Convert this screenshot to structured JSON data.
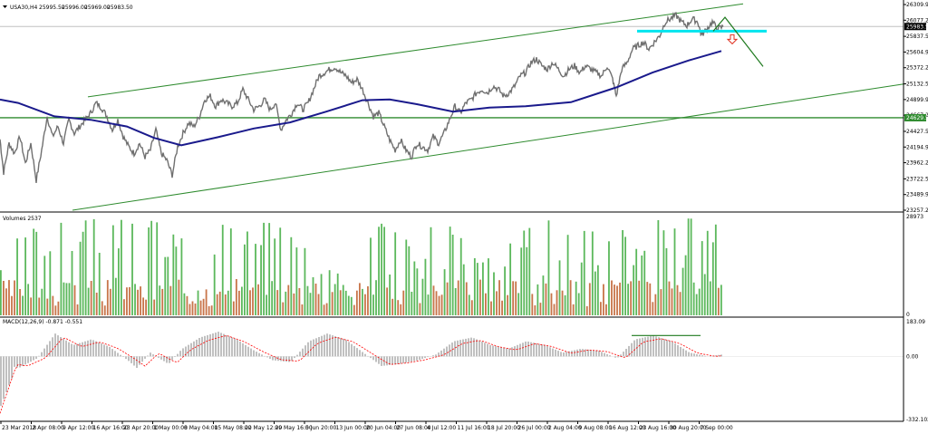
{
  "chart_data": [
    {
      "type": "line",
      "header": {
        "symbol": "USA30,H4",
        "open": "25995.50",
        "high": "25996.00",
        "low": "25969.00",
        "close": "25983.50"
      },
      "yticks": [
        "26309.90",
        "26077.25",
        "25837.55",
        "25604.90",
        "25372.25",
        "25132.55",
        "24899.90",
        "24667.25",
        "24427.55",
        "24194.90",
        "23962.25",
        "23722.55",
        "23489.90",
        "23257.25"
      ],
      "ylim": [
        23257.25,
        26309.9
      ],
      "price_label": "25983.50",
      "hline_label": "24629.51",
      "hline_value": 24629.51,
      "price_path": [
        {
          "x": 0,
          "y": 24310
        },
        {
          "x": 4,
          "y": 23820
        },
        {
          "x": 10,
          "y": 24250
        },
        {
          "x": 16,
          "y": 24100
        },
        {
          "x": 22,
          "y": 24350
        },
        {
          "x": 28,
          "y": 23950
        },
        {
          "x": 34,
          "y": 24250
        },
        {
          "x": 40,
          "y": 23700
        },
        {
          "x": 46,
          "y": 24150
        },
        {
          "x": 52,
          "y": 24650
        },
        {
          "x": 58,
          "y": 24350
        },
        {
          "x": 64,
          "y": 24500
        },
        {
          "x": 70,
          "y": 24250
        },
        {
          "x": 76,
          "y": 24600
        },
        {
          "x": 82,
          "y": 24400
        },
        {
          "x": 88,
          "y": 24500
        },
        {
          "x": 94,
          "y": 24600
        },
        {
          "x": 100,
          "y": 24700
        },
        {
          "x": 106,
          "y": 24850
        },
        {
          "x": 112,
          "y": 24780
        },
        {
          "x": 118,
          "y": 24650
        },
        {
          "x": 124,
          "y": 24450
        },
        {
          "x": 130,
          "y": 24600
        },
        {
          "x": 136,
          "y": 24350
        },
        {
          "x": 142,
          "y": 24200
        },
        {
          "x": 148,
          "y": 24100
        },
        {
          "x": 154,
          "y": 24250
        },
        {
          "x": 160,
          "y": 24050
        },
        {
          "x": 166,
          "y": 24150
        },
        {
          "x": 172,
          "y": 24450
        },
        {
          "x": 178,
          "y": 24100
        },
        {
          "x": 184,
          "y": 24000
        },
        {
          "x": 190,
          "y": 23780
        },
        {
          "x": 196,
          "y": 24200
        },
        {
          "x": 202,
          "y": 24400
        },
        {
          "x": 208,
          "y": 24550
        },
        {
          "x": 214,
          "y": 24500
        },
        {
          "x": 220,
          "y": 24650
        },
        {
          "x": 226,
          "y": 24900
        },
        {
          "x": 232,
          "y": 24950
        },
        {
          "x": 238,
          "y": 24800
        },
        {
          "x": 244,
          "y": 24900
        },
        {
          "x": 250,
          "y": 24850
        },
        {
          "x": 256,
          "y": 24800
        },
        {
          "x": 262,
          "y": 24850
        },
        {
          "x": 268,
          "y": 25050
        },
        {
          "x": 274,
          "y": 24900
        },
        {
          "x": 280,
          "y": 24750
        },
        {
          "x": 286,
          "y": 24800
        },
        {
          "x": 292,
          "y": 24900
        },
        {
          "x": 298,
          "y": 24750
        },
        {
          "x": 304,
          "y": 24850
        },
        {
          "x": 310,
          "y": 24450
        },
        {
          "x": 316,
          "y": 24600
        },
        {
          "x": 322,
          "y": 24700
        },
        {
          "x": 328,
          "y": 24850
        },
        {
          "x": 334,
          "y": 24750
        },
        {
          "x": 340,
          "y": 24850
        },
        {
          "x": 346,
          "y": 25050
        },
        {
          "x": 352,
          "y": 25250
        },
        {
          "x": 358,
          "y": 25300
        },
        {
          "x": 364,
          "y": 25350
        },
        {
          "x": 370,
          "y": 25380
        },
        {
          "x": 376,
          "y": 25300
        },
        {
          "x": 382,
          "y": 25250
        },
        {
          "x": 388,
          "y": 25150
        },
        {
          "x": 394,
          "y": 25200
        },
        {
          "x": 400,
          "y": 25050
        },
        {
          "x": 406,
          "y": 24850
        },
        {
          "x": 412,
          "y": 24650
        },
        {
          "x": 418,
          "y": 24700
        },
        {
          "x": 424,
          "y": 24500
        },
        {
          "x": 430,
          "y": 24300
        },
        {
          "x": 436,
          "y": 24150
        },
        {
          "x": 442,
          "y": 24300
        },
        {
          "x": 448,
          "y": 24150
        },
        {
          "x": 454,
          "y": 24050
        },
        {
          "x": 460,
          "y": 24250
        },
        {
          "x": 466,
          "y": 24200
        },
        {
          "x": 472,
          "y": 24150
        },
        {
          "x": 478,
          "y": 24350
        },
        {
          "x": 484,
          "y": 24250
        },
        {
          "x": 490,
          "y": 24400
        },
        {
          "x": 496,
          "y": 24600
        },
        {
          "x": 502,
          "y": 24800
        },
        {
          "x": 508,
          "y": 24700
        },
        {
          "x": 514,
          "y": 24850
        },
        {
          "x": 520,
          "y": 24900
        },
        {
          "x": 526,
          "y": 25000
        },
        {
          "x": 532,
          "y": 25050
        },
        {
          "x": 538,
          "y": 25000
        },
        {
          "x": 544,
          "y": 25100
        },
        {
          "x": 550,
          "y": 25050
        },
        {
          "x": 556,
          "y": 24950
        },
        {
          "x": 562,
          "y": 25000
        },
        {
          "x": 568,
          "y": 25100
        },
        {
          "x": 574,
          "y": 25250
        },
        {
          "x": 580,
          "y": 25300
        },
        {
          "x": 586,
          "y": 25450
        },
        {
          "x": 592,
          "y": 25500
        },
        {
          "x": 598,
          "y": 25400
        },
        {
          "x": 604,
          "y": 25350
        },
        {
          "x": 610,
          "y": 25450
        },
        {
          "x": 616,
          "y": 25350
        },
        {
          "x": 622,
          "y": 25250
        },
        {
          "x": 628,
          "y": 25350
        },
        {
          "x": 634,
          "y": 25400
        },
        {
          "x": 640,
          "y": 25300
        },
        {
          "x": 646,
          "y": 25400
        },
        {
          "x": 652,
          "y": 25350
        },
        {
          "x": 658,
          "y": 25300
        },
        {
          "x": 664,
          "y": 25250
        },
        {
          "x": 670,
          "y": 25400
        },
        {
          "x": 676,
          "y": 25200
        },
        {
          "x": 680,
          "y": 24950
        },
        {
          "x": 686,
          "y": 25350
        },
        {
          "x": 692,
          "y": 25450
        },
        {
          "x": 698,
          "y": 25650
        },
        {
          "x": 704,
          "y": 25700
        },
        {
          "x": 710,
          "y": 25750
        },
        {
          "x": 716,
          "y": 25650
        },
        {
          "x": 722,
          "y": 25750
        },
        {
          "x": 728,
          "y": 25850
        },
        {
          "x": 734,
          "y": 26050
        },
        {
          "x": 740,
          "y": 26100
        },
        {
          "x": 746,
          "y": 26150
        },
        {
          "x": 752,
          "y": 26050
        },
        {
          "x": 758,
          "y": 26000
        },
        {
          "x": 764,
          "y": 26100
        },
        {
          "x": 770,
          "y": 26050
        },
        {
          "x": 774,
          "y": 25850
        },
        {
          "x": 780,
          "y": 25950
        },
        {
          "x": 786,
          "y": 26050
        },
        {
          "x": 792,
          "y": 25950
        },
        {
          "x": 798,
          "y": 25980
        }
      ],
      "ma_path": [
        {
          "x": 0,
          "y": 24900
        },
        {
          "x": 20,
          "y": 24850
        },
        {
          "x": 60,
          "y": 24650
        },
        {
          "x": 100,
          "y": 24600
        },
        {
          "x": 140,
          "y": 24500
        },
        {
          "x": 170,
          "y": 24330
        },
        {
          "x": 200,
          "y": 24220
        },
        {
          "x": 240,
          "y": 24340
        },
        {
          "x": 280,
          "y": 24470
        },
        {
          "x": 320,
          "y": 24560
        },
        {
          "x": 360,
          "y": 24720
        },
        {
          "x": 400,
          "y": 24890
        },
        {
          "x": 430,
          "y": 24900
        },
        {
          "x": 460,
          "y": 24830
        },
        {
          "x": 500,
          "y": 24720
        },
        {
          "x": 540,
          "y": 24780
        },
        {
          "x": 580,
          "y": 24800
        },
        {
          "x": 630,
          "y": 24860
        },
        {
          "x": 680,
          "y": 25080
        },
        {
          "x": 720,
          "y": 25300
        },
        {
          "x": 760,
          "y": 25480
        },
        {
          "x": 796,
          "y": 25620
        }
      ],
      "drawings": {
        "channel_upper": [
          {
            "x": 97,
            "y": 24940
          },
          {
            "x": 820,
            "y": 26320
          }
        ],
        "channel_lower": [
          {
            "x": 80,
            "y": 23257
          },
          {
            "x": 998,
            "y": 25132
          }
        ],
        "neckline": [
          {
            "x": 703,
            "y": 25915
          },
          {
            "x": 846,
            "y": 25915
          }
        ],
        "projection": [
          {
            "x": 787,
            "y": 25915
          },
          {
            "x": 800,
            "y": 26120
          },
          {
            "x": 842,
            "y": 25390
          }
        ]
      },
      "grid": false
    },
    {
      "type": "bar",
      "label": "Volumes 2537",
      "yticks": [
        "28973",
        "0"
      ],
      "ylim": [
        0,
        28973
      ],
      "bar_count": 264,
      "up_color": "#5cb85c",
      "down_color": "#c8754a"
    },
    {
      "type": "area",
      "label": "MACD(12,26,9) -0.871 -0.551",
      "yticks": [
        "183.09",
        "0.00",
        "-332.102"
      ],
      "ylim": [
        -332.102,
        183.09
      ],
      "histogram_color": "#c0c0c0",
      "signal_color": "#ff0000",
      "macd_path": [
        {
          "x": 0,
          "y": -40
        },
        {
          "x": 20,
          "y": -60
        },
        {
          "x": 40,
          "y": -10
        },
        {
          "x": 60,
          "y": 120
        },
        {
          "x": 80,
          "y": 60
        },
        {
          "x": 100,
          "y": 90
        },
        {
          "x": 120,
          "y": 50
        },
        {
          "x": 140,
          "y": -20
        },
        {
          "x": 150,
          "y": -60
        },
        {
          "x": 165,
          "y": 20
        },
        {
          "x": 185,
          "y": -40
        },
        {
          "x": 200,
          "y": 40
        },
        {
          "x": 220,
          "y": 100
        },
        {
          "x": 240,
          "y": 130
        },
        {
          "x": 260,
          "y": 90
        },
        {
          "x": 280,
          "y": 30
        },
        {
          "x": 300,
          "y": -20
        },
        {
          "x": 320,
          "y": -30
        },
        {
          "x": 340,
          "y": 80
        },
        {
          "x": 360,
          "y": 120
        },
        {
          "x": 380,
          "y": 90
        },
        {
          "x": 400,
          "y": 20
        },
        {
          "x": 420,
          "y": -50
        },
        {
          "x": 440,
          "y": -40
        },
        {
          "x": 460,
          "y": -20
        },
        {
          "x": 480,
          "y": 10
        },
        {
          "x": 500,
          "y": 80
        },
        {
          "x": 520,
          "y": 100
        },
        {
          "x": 540,
          "y": 60
        },
        {
          "x": 560,
          "y": 40
        },
        {
          "x": 580,
          "y": 80
        },
        {
          "x": 600,
          "y": 60
        },
        {
          "x": 620,
          "y": 20
        },
        {
          "x": 640,
          "y": 40
        },
        {
          "x": 660,
          "y": 30
        },
        {
          "x": 680,
          "y": -10
        },
        {
          "x": 700,
          "y": 90
        },
        {
          "x": 720,
          "y": 110
        },
        {
          "x": 740,
          "y": 80
        },
        {
          "x": 760,
          "y": 20
        },
        {
          "x": 780,
          "y": 0
        },
        {
          "x": 796,
          "y": 10
        }
      ],
      "macd_trend": [
        {
          "x": 697,
          "y": 110
        },
        {
          "x": 773,
          "y": 110
        }
      ]
    }
  ],
  "xticks": [
    "23 Mar 2018",
    "2 Apr 08:00",
    "9 Apr 12:00",
    "16 Apr 16:00",
    "23 Apr 20:00",
    "1 May 00:00",
    "8 May 04:00",
    "15 May 08:00",
    "22 May 12:00",
    "29 May 16:00",
    "5 Jun 20:00",
    "13 Jun 00:00",
    "20 Jun 04:00",
    "27 Jun 08:00",
    "4 Jul 12:00",
    "11 Jul 16:00",
    "18 Jul 20:00",
    "26 Jul 00:00",
    "2 Aug 04:00",
    "9 Aug 08:00",
    "16 Aug 12:00",
    "23 Aug 16:00",
    "30 Aug 20:00",
    "7 Sep 00:00"
  ]
}
